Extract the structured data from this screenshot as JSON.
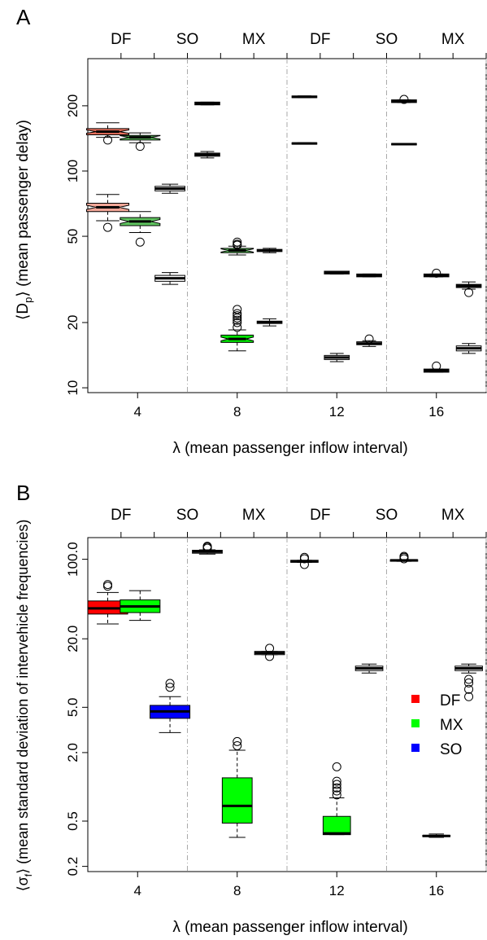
{
  "figure": {
    "panels": [
      {
        "id": "A",
        "letter": "A",
        "top_labels": [
          "DF",
          "SO",
          "MX",
          "DF",
          "SO",
          "MX"
        ],
        "xlabel": "λ (mean passenger inflow interval)",
        "ylabel_parts": [
          "⟨D",
          "p",
          "⟩ (mean passenger delay)"
        ]
      },
      {
        "id": "B",
        "letter": "B",
        "top_labels": [
          "DF",
          "SO",
          "MX",
          "DF",
          "SO",
          "MX"
        ],
        "xlabel": "λ (mean passenger inflow interval)",
        "ylabel_parts": [
          "⟨σ",
          "f",
          "⟩ (mean standard deviation of intervehicle frequencies)"
        ],
        "legend": [
          {
            "label": "DF",
            "color": "#ff0000"
          },
          {
            "label": "MX",
            "color": "#00ff00"
          },
          {
            "label": "SO",
            "color": "#0000ff"
          }
        ]
      }
    ]
  },
  "chart_data": [
    {
      "type": "box",
      "panel": "A",
      "y_scale": "log",
      "ylim": [
        9.5,
        330
      ],
      "y_ticks": [
        10,
        20,
        50,
        100,
        200
      ],
      "y_tick_labels": [
        "10",
        "20",
        "50",
        "100",
        "200"
      ],
      "x_ticks": [
        4,
        8,
        12,
        16
      ],
      "x_tick_labels": [
        "4",
        "8",
        "12",
        "16"
      ],
      "xlim": [
        2,
        18
      ],
      "group_dividers": [
        6,
        10,
        14,
        18
      ],
      "grid": false,
      "boxes": [
        {
          "x": 2.8,
          "lw": 1.7,
          "q1": 147,
          "med": 152,
          "q3": 157,
          "lo": 143,
          "hi": 167,
          "outliers": [
            139
          ],
          "fill": "#e8705c",
          "notch": true
        },
        {
          "x": 2.8,
          "lw": 1.7,
          "q1": 65,
          "med": 68,
          "q3": 71,
          "lo": 59,
          "hi": 78,
          "outliers": [
            55
          ],
          "fill": "#f2a697",
          "notch": true
        },
        {
          "x": 4.1,
          "lw": 1.6,
          "q1": 139,
          "med": 143,
          "q3": 146,
          "lo": 135,
          "hi": 150,
          "outliers": [
            130
          ],
          "fill": "#5cbf5c",
          "notch": true
        },
        {
          "x": 4.1,
          "lw": 1.6,
          "q1": 56,
          "med": 58.5,
          "q3": 61,
          "lo": 52,
          "hi": 65,
          "outliers": [
            47
          ],
          "fill": "#60c560",
          "notch": true
        },
        {
          "x": 5.3,
          "lw": 1.2,
          "q1": 81,
          "med": 83,
          "q3": 85,
          "lo": 79,
          "hi": 87,
          "outliers": [],
          "fill": "#ffffff",
          "notch": false
        },
        {
          "x": 5.3,
          "lw": 1.2,
          "q1": 31,
          "med": 32,
          "q3": 33,
          "lo": 30,
          "hi": 34,
          "outliers": [],
          "fill": "#ffffff",
          "notch": false
        },
        {
          "x": 6.8,
          "lw": 1.0,
          "q1": 202,
          "med": 205,
          "q3": 208,
          "lo": 202,
          "hi": 208,
          "outliers": [],
          "fill": "#ffffff",
          "notch": false
        },
        {
          "x": 6.8,
          "lw": 1.0,
          "q1": 117,
          "med": 119,
          "q3": 121,
          "lo": 115,
          "hi": 123,
          "outliers": [],
          "fill": "#ffffff",
          "notch": false
        },
        {
          "x": 8.0,
          "lw": 1.3,
          "q1": 42,
          "med": 43,
          "q3": 44,
          "lo": 41,
          "hi": 45,
          "outliers": [
            46,
            47,
            45.5
          ],
          "fill": "#5cbf5c",
          "notch": true
        },
        {
          "x": 8.0,
          "lw": 1.3,
          "q1": 16.2,
          "med": 16.8,
          "q3": 17.5,
          "lo": 14.8,
          "hi": 18.5,
          "outliers": [
            19,
            20,
            20.5,
            21,
            21.5,
            22,
            23
          ],
          "fill": "#00e400",
          "notch": true
        },
        {
          "x": 9.3,
          "lw": 1.0,
          "q1": 42.5,
          "med": 43,
          "q3": 43.5,
          "lo": 42,
          "hi": 44,
          "outliers": [],
          "fill": "#ffffff",
          "notch": false
        },
        {
          "x": 9.3,
          "lw": 1.0,
          "q1": 19.8,
          "med": 20,
          "q3": 20.3,
          "lo": 19.3,
          "hi": 20.8,
          "outliers": [],
          "fill": "#ffffff",
          "notch": false
        },
        {
          "x": 10.7,
          "lw": 1.0,
          "q1": 218,
          "med": 220,
          "q3": 222,
          "lo": 218,
          "hi": 222,
          "outliers": [],
          "fill": "#ffffff",
          "notch": false
        },
        {
          "x": 10.7,
          "lw": 1.0,
          "q1": 133,
          "med": 134,
          "q3": 135,
          "lo": 133,
          "hi": 135,
          "outliers": [],
          "fill": "#ffffff",
          "notch": false
        },
        {
          "x": 12.0,
          "lw": 1.0,
          "q1": 33.5,
          "med": 34,
          "q3": 34.5,
          "lo": 33.5,
          "hi": 34.5,
          "outliers": [],
          "fill": "#ffffff",
          "notch": false
        },
        {
          "x": 12.0,
          "lw": 1.0,
          "q1": 13.5,
          "med": 13.8,
          "q3": 14.1,
          "lo": 13.2,
          "hi": 14.4,
          "outliers": [],
          "fill": "#ffffff",
          "notch": false
        },
        {
          "x": 13.3,
          "lw": 1.0,
          "q1": 32.5,
          "med": 33,
          "q3": 33.5,
          "lo": 32.5,
          "hi": 33.5,
          "outliers": [],
          "fill": "#ffffff",
          "notch": false
        },
        {
          "x": 13.3,
          "lw": 1.0,
          "q1": 15.8,
          "med": 16,
          "q3": 16.3,
          "lo": 15.5,
          "hi": 16.5,
          "outliers": [
            16.8
          ],
          "fill": "#ffffff",
          "notch": false
        },
        {
          "x": 14.7,
          "lw": 1.0,
          "q1": 207,
          "med": 210,
          "q3": 213,
          "lo": 207,
          "hi": 213,
          "outliers": [
            214
          ],
          "fill": "#ffffff",
          "notch": false
        },
        {
          "x": 14.7,
          "lw": 1.0,
          "q1": 132,
          "med": 133,
          "q3": 134,
          "lo": 132,
          "hi": 134,
          "outliers": [],
          "fill": "#ffffff",
          "notch": false
        },
        {
          "x": 16.0,
          "lw": 1.0,
          "q1": 32.5,
          "med": 33,
          "q3": 33.5,
          "lo": 32.5,
          "hi": 33.5,
          "outliers": [
            33.8
          ],
          "fill": "#ffffff",
          "notch": false
        },
        {
          "x": 16.0,
          "lw": 1.0,
          "q1": 11.8,
          "med": 12,
          "q3": 12.2,
          "lo": 11.8,
          "hi": 12.2,
          "outliers": [
            12.6
          ],
          "fill": "#ffffff",
          "notch": false
        },
        {
          "x": 17.3,
          "lw": 1.0,
          "q1": 29,
          "med": 29.5,
          "q3": 30,
          "lo": 28.5,
          "hi": 30.8,
          "outliers": [
            27.5
          ],
          "fill": "#ffffff",
          "notch": false
        },
        {
          "x": 17.3,
          "lw": 1.0,
          "q1": 14.8,
          "med": 15.2,
          "q3": 15.6,
          "lo": 14.4,
          "hi": 16,
          "outliers": [],
          "fill": "#ffffff",
          "notch": false
        }
      ]
    },
    {
      "type": "box",
      "panel": "B",
      "y_scale": "log",
      "ylim": [
        0.18,
        155
      ],
      "y_ticks": [
        0.2,
        0.5,
        2.0,
        5.0,
        20.0,
        100.0
      ],
      "y_tick_labels": [
        "0.2",
        "0.5",
        "2.0",
        "5.0",
        "20.0",
        "100.0"
      ],
      "x_ticks": [
        4,
        8,
        12,
        16
      ],
      "x_tick_labels": [
        "4",
        "8",
        "12",
        "16"
      ],
      "xlim": [
        2,
        18
      ],
      "group_dividers": [
        6,
        10,
        14,
        18
      ],
      "grid": false,
      "legend_position": "right",
      "boxes": [
        {
          "x": 2.8,
          "lw": 1.6,
          "q1": 33,
          "med": 37,
          "q3": 43,
          "lo": 27,
          "hi": 51,
          "outliers": [
            58,
            60
          ],
          "fill": "#ff0000",
          "notch": false
        },
        {
          "x": 4.1,
          "lw": 1.6,
          "q1": 34,
          "med": 38.5,
          "q3": 44,
          "lo": 29,
          "hi": 53,
          "outliers": [],
          "fill": "#00ff00",
          "notch": false
        },
        {
          "x": 5.3,
          "lw": 1.6,
          "q1": 4.0,
          "med": 4.6,
          "q3": 5.2,
          "lo": 3.0,
          "hi": 6.2,
          "outliers": [
            7.5,
            8.1
          ],
          "fill": "#0000ff",
          "notch": false
        },
        {
          "x": 6.8,
          "lw": 1.2,
          "q1": 113,
          "med": 117,
          "q3": 120,
          "lo": 111,
          "hi": 121,
          "outliers": [
            125,
            128,
            130
          ],
          "fill": "#ffffff",
          "notch": false
        },
        {
          "x": 8.0,
          "lw": 1.2,
          "q1": 0.48,
          "med": 0.68,
          "q3": 1.2,
          "lo": 0.36,
          "hi": 2.1,
          "outliers": [
            2.3,
            2.5
          ],
          "fill": "#00ff00",
          "notch": false
        },
        {
          "x": 9.3,
          "lw": 1.2,
          "q1": 14.5,
          "med": 15,
          "q3": 15.5,
          "lo": 14.5,
          "hi": 15.5,
          "outliers": [
            14,
            16.5
          ],
          "fill": "#ffffff",
          "notch": false
        },
        {
          "x": 10.7,
          "lw": 1.1,
          "q1": 94,
          "med": 96,
          "q3": 98,
          "lo": 94,
          "hi": 98,
          "outliers": [
            90,
            101,
            104
          ],
          "fill": "#ffffff",
          "notch": false
        },
        {
          "x": 12.0,
          "lw": 1.1,
          "q1": 0.38,
          "med": 0.39,
          "q3": 0.55,
          "lo": 0.38,
          "hi": 0.8,
          "outliers": [
            0.85,
            0.92,
            0.98,
            1.05,
            1.12,
            1.5
          ],
          "fill": "#00ff00",
          "notch": false
        },
        {
          "x": 13.3,
          "lw": 1.1,
          "q1": 10.5,
          "med": 11,
          "q3": 11.5,
          "lo": 10,
          "hi": 12,
          "outliers": [],
          "fill": "#ffffff",
          "notch": false
        },
        {
          "x": 14.7,
          "lw": 1.1,
          "q1": 96,
          "med": 98,
          "q3": 99,
          "lo": 96,
          "hi": 99,
          "outliers": [
            101,
            104,
            106
          ],
          "fill": "#ffffff",
          "notch": false
        },
        {
          "x": 16.0,
          "lw": 1.1,
          "q1": 0.365,
          "med": 0.37,
          "q3": 0.375,
          "lo": 0.36,
          "hi": 0.385,
          "outliers": [],
          "fill": "#ffffff",
          "notch": false
        },
        {
          "x": 17.3,
          "lw": 1.1,
          "q1": 10.5,
          "med": 11,
          "q3": 11.5,
          "lo": 10,
          "hi": 12,
          "outliers": [
            8.8,
            8.2,
            7.2,
            6.2
          ],
          "fill": "#ffffff",
          "notch": false
        }
      ]
    }
  ]
}
